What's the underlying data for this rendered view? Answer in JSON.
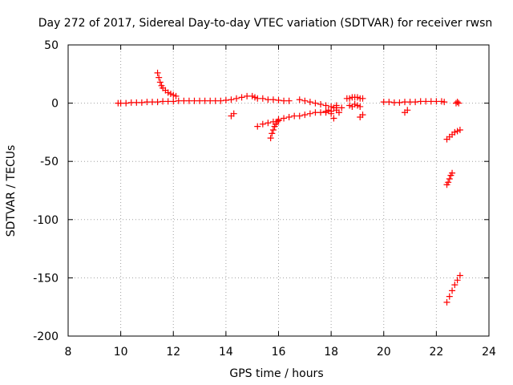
{
  "chart_data": {
    "type": "scatter",
    "title": "Day 272 of 2017, Sidereal Day-to-day VTEC variation (SDTVAR) for receiver rwsn",
    "xlabel": "GPS time / hours",
    "ylabel": "SDTVAR / TECUs",
    "xlim": [
      8,
      24
    ],
    "ylim": [
      -200,
      50
    ],
    "xticks": [
      8,
      10,
      12,
      14,
      16,
      18,
      20,
      22,
      24
    ],
    "yticks": [
      50,
      0,
      -50,
      -100,
      -150,
      -200
    ],
    "grid": true,
    "marker": "plus",
    "color": "#ff0000",
    "series": [
      {
        "name": "main-trace",
        "x": [
          9.9,
          10.0,
          10.2,
          10.4,
          10.6,
          10.8,
          11.0,
          11.2,
          11.4,
          11.6,
          11.8,
          12.0,
          12.2,
          12.4,
          12.6,
          12.8,
          13.0,
          13.2,
          13.4,
          13.6,
          13.8,
          14.0,
          14.2,
          14.4,
          14.6,
          14.8,
          15.0,
          15.1,
          15.2,
          15.4,
          15.6,
          15.8,
          16.0,
          16.2,
          16.4
        ],
        "y": [
          0,
          0,
          0,
          0.5,
          0.5,
          0.5,
          1,
          1,
          1,
          1.5,
          1.5,
          1.5,
          2,
          2,
          2,
          2,
          2,
          2,
          2,
          2,
          2,
          2.5,
          3,
          4,
          5,
          6,
          6,
          5,
          4,
          4,
          3,
          3,
          2.5,
          2,
          2
        ]
      },
      {
        "name": "rising-arc",
        "x": [
          11.4,
          11.45,
          11.5,
          11.55,
          11.6,
          11.7,
          11.8,
          11.9,
          12.0,
          12.1
        ],
        "y": [
          26,
          22,
          18,
          15,
          13,
          11,
          9,
          8,
          7,
          6
        ]
      },
      {
        "name": "upper-arc",
        "x": [
          16.8,
          17.0,
          17.2,
          17.4,
          17.6,
          17.8,
          18.0,
          18.1,
          18.2
        ],
        "y": [
          3,
          2,
          1,
          0,
          -1,
          -2,
          -3,
          -4,
          -4
        ]
      },
      {
        "name": "lower-arc",
        "x": [
          15.2,
          15.4,
          15.6,
          15.8,
          16.0,
          16.2,
          16.4,
          16.6,
          16.8,
          17.0,
          17.2,
          17.4,
          17.6,
          17.8,
          18.0,
          18.2
        ],
        "y": [
          -20,
          -18,
          -17,
          -16,
          -14,
          -13,
          -12,
          -11,
          -11,
          -10,
          -9,
          -8,
          -8,
          -7,
          -7,
          -6
        ]
      },
      {
        "name": "dip",
        "x": [
          15.7,
          15.75,
          15.8,
          15.85,
          15.9,
          15.95,
          16.0
        ],
        "y": [
          -30,
          -26,
          -23,
          -20,
          -18,
          -16,
          -15
        ]
      },
      {
        "name": "scatter-mid",
        "x": [
          14.2,
          14.3,
          17.8,
          17.9,
          18.0,
          18.1,
          18.2,
          18.3,
          18.4,
          19.1,
          19.2
        ],
        "y": [
          -11,
          -9,
          -8,
          -6,
          -9,
          -13,
          -2,
          -8,
          -4,
          -12,
          -10
        ]
      },
      {
        "name": "cluster-19",
        "x": [
          18.6,
          18.7,
          18.8,
          18.9,
          19.0,
          19.1,
          19.2,
          18.7,
          18.8,
          18.9,
          19.0,
          19.1
        ],
        "y": [
          4,
          4,
          5,
          5,
          5,
          4,
          4,
          -2,
          -3,
          -1,
          -2,
          -3
        ]
      },
      {
        "name": "trace-20-22",
        "x": [
          20.0,
          20.2,
          20.4,
          20.6,
          20.8,
          21.0,
          21.2,
          21.4,
          21.6,
          21.8,
          22.0,
          22.2,
          22.3
        ],
        "y": [
          1,
          1,
          0.5,
          0.5,
          1,
          1,
          1,
          1.5,
          1.5,
          1.5,
          1.5,
          1.5,
          1
        ]
      },
      {
        "name": "scatter-20",
        "x": [
          20.8,
          20.9
        ],
        "y": [
          -8,
          -6
        ]
      },
      {
        "name": "point-22.8",
        "x": [
          22.75,
          22.8,
          22.85
        ],
        "y": [
          0,
          1,
          0
        ]
      },
      {
        "name": "descent-a",
        "x": [
          22.4,
          22.5,
          22.6,
          22.7,
          22.8,
          22.9
        ],
        "y": [
          -31,
          -29,
          -27,
          -25,
          -24,
          -23
        ]
      },
      {
        "name": "descent-b",
        "x": [
          22.4,
          22.45,
          22.5,
          22.55,
          22.6
        ],
        "y": [
          -70,
          -68,
          -65,
          -62,
          -60
        ]
      },
      {
        "name": "descent-c",
        "x": [
          22.4,
          22.5,
          22.6,
          22.7,
          22.8,
          22.9
        ],
        "y": [
          -171,
          -166,
          -161,
          -156,
          -152,
          -148
        ]
      }
    ]
  }
}
